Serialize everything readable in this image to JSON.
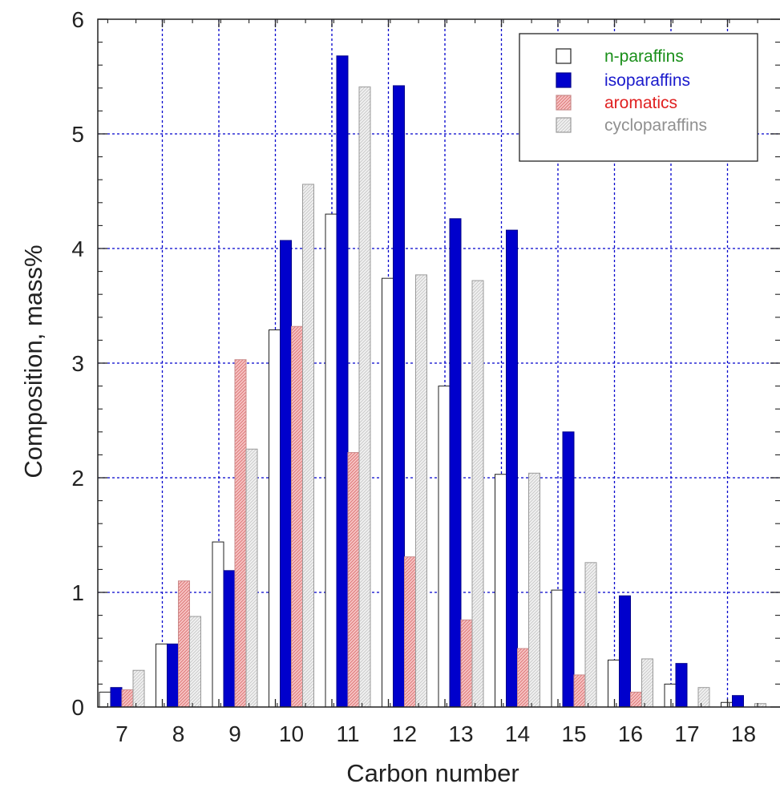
{
  "chart_data": {
    "type": "bar",
    "title": "",
    "xlabel": "Carbon number",
    "ylabel": "Composition, mass%",
    "categories": [
      "7",
      "8",
      "9",
      "10",
      "11",
      "12",
      "13",
      "14",
      "15",
      "16",
      "17",
      "18"
    ],
    "ylim": [
      0,
      6
    ],
    "yticks": [
      "0",
      "1",
      "2",
      "3",
      "4",
      "5",
      "6"
    ],
    "grid": true,
    "legend_position": "top-right",
    "series": [
      {
        "name": "n-paraffins",
        "fill": "#ffffff",
        "pattern": "none",
        "label_color": "#1a8f1a",
        "values": [
          0.13,
          0.55,
          1.44,
          3.29,
          4.3,
          3.74,
          2.8,
          2.03,
          1.02,
          0.41,
          0.2,
          0.04
        ]
      },
      {
        "name": "isoparaffins",
        "fill": "#0000cc",
        "pattern": "none",
        "label_color": "#1a1acc",
        "values": [
          0.17,
          0.55,
          1.19,
          4.07,
          5.68,
          5.42,
          4.26,
          4.16,
          2.4,
          0.97,
          0.38,
          0.1
        ]
      },
      {
        "name": "aromatics",
        "fill": "#f5b8b8",
        "pattern": "hatch",
        "label_color": "#e02020",
        "values": [
          0.15,
          1.1,
          3.03,
          3.32,
          2.22,
          1.31,
          0.76,
          0.51,
          0.28,
          0.13,
          0.0,
          0.0
        ]
      },
      {
        "name": "cycloparaffins",
        "fill": "#ececec",
        "pattern": "hatch",
        "label_color": "#909090",
        "values": [
          0.32,
          0.79,
          2.25,
          4.56,
          5.41,
          3.77,
          3.72,
          2.04,
          1.26,
          0.42,
          0.17,
          0.03
        ]
      }
    ]
  }
}
